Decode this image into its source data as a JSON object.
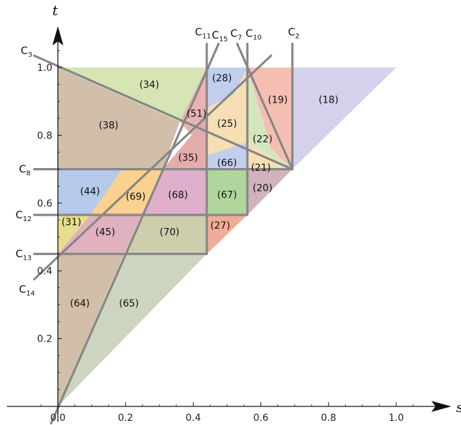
{
  "axes": {
    "x_label": "s",
    "y_label": "t",
    "x_ticks": [
      "0.0",
      "0.2",
      "0.4",
      "0.6",
      "0.8",
      "1.0"
    ],
    "y_ticks": [
      "0.2",
      "0.4",
      "0.6",
      "0.8",
      "1.0"
    ]
  },
  "curves": [
    {
      "base": "C",
      "sub": "3"
    },
    {
      "base": "C",
      "sub": "8"
    },
    {
      "base": "C",
      "sub": "12"
    },
    {
      "base": "C",
      "sub": "13"
    },
    {
      "base": "C",
      "sub": "14"
    },
    {
      "base": "C",
      "sub": "11"
    },
    {
      "base": "C",
      "sub": "15"
    },
    {
      "base": "C",
      "sub": "7"
    },
    {
      "base": "C",
      "sub": "10"
    },
    {
      "base": "C",
      "sub": "2"
    }
  ],
  "regions": [
    {
      "label": "(34)",
      "color": "#cfe0a6"
    },
    {
      "label": "(38)",
      "color": "#c9b49a"
    },
    {
      "label": "(51)",
      "color": "#e6a6a6"
    },
    {
      "label": "(28)",
      "color": "#b6c6ea"
    },
    {
      "label": "(25)",
      "color": "#f5d9a8"
    },
    {
      "label": "(19)",
      "color": "#f3b3a6"
    },
    {
      "label": "(18)",
      "color": "#cdc9ea"
    },
    {
      "label": "(22)",
      "color": "#cde3b0"
    },
    {
      "label": "(35)",
      "color": "#e29c9c"
    },
    {
      "label": "(66)",
      "color": "#b6c6ea"
    },
    {
      "label": "(21)",
      "color": "#f5d9a8"
    },
    {
      "label": "(44)",
      "color": "#a9bfe6"
    },
    {
      "label": "(69)",
      "color": "#f9c97a"
    },
    {
      "label": "(68)",
      "color": "#d9a1c2"
    },
    {
      "label": "(67)",
      "color": "#a3cf8c"
    },
    {
      "label": "(20)",
      "color": "#c8a6b3"
    },
    {
      "label": "(31)",
      "color": "#e3d779"
    },
    {
      "label": "(45)",
      "color": "#dba3b3"
    },
    {
      "label": "(70)",
      "color": "#c4c69d"
    },
    {
      "label": "(27)",
      "color": "#ee9e85"
    },
    {
      "label": "(64)",
      "color": "#c9b49a"
    },
    {
      "label": "(65)",
      "color": "#c4ceb5"
    }
  ]
}
